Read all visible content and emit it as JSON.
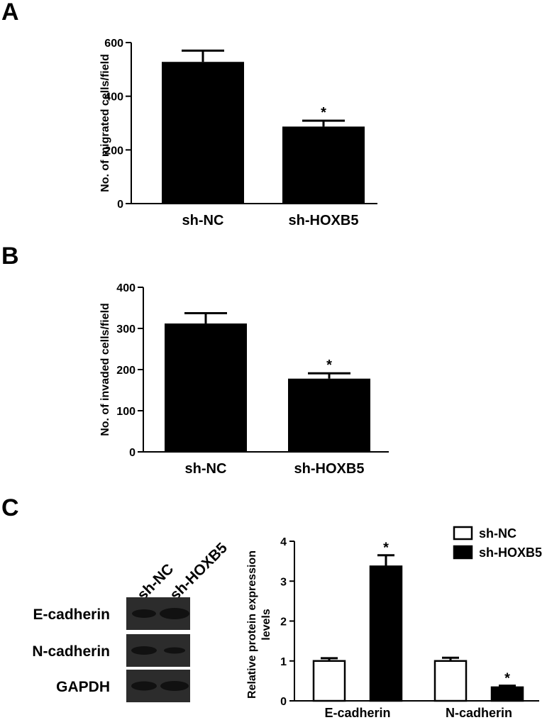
{
  "panels": {
    "a": "A",
    "b": "B",
    "c": "C"
  },
  "chart_data": [
    {
      "type": "bar",
      "panel": "A",
      "ylabel": "No. of migrated cells/field",
      "categories": [
        "sh-NC",
        "sh-HOXB5"
      ],
      "values": [
        528,
        287
      ],
      "errors": [
        42,
        22
      ],
      "annotations": [
        "",
        "*"
      ],
      "ylim": [
        0,
        600
      ],
      "yticks": [
        "0",
        "200",
        "400",
        "600"
      ],
      "bar_color": "#000000"
    },
    {
      "type": "bar",
      "panel": "B",
      "ylabel": "No. of invaded cells/field",
      "categories": [
        "sh-NC",
        "sh-HOXB5"
      ],
      "values": [
        312,
        178
      ],
      "errors": [
        25,
        13
      ],
      "annotations": [
        "",
        "*"
      ],
      "ylim": [
        0,
        400
      ],
      "yticks": [
        "0",
        "100",
        "200",
        "300",
        "400"
      ],
      "bar_color": "#000000"
    },
    {
      "type": "bar",
      "panel": "C",
      "ylabel": "Relative protein expression levels",
      "ylabel_lines": [
        "Relative protein expression",
        "levels"
      ],
      "categories": [
        "E-cadherin",
        "N-cadherin"
      ],
      "series": [
        {
          "name": "sh-NC",
          "values": [
            1.0,
            1.0
          ],
          "errors": [
            0.07,
            0.08
          ],
          "color": "#ffffff",
          "annotations": [
            "",
            ""
          ]
        },
        {
          "name": "sh-HOXB5",
          "values": [
            3.37,
            0.34
          ],
          "errors": [
            0.28,
            0.04
          ],
          "color": "#000000",
          "annotations": [
            "*",
            "*"
          ]
        }
      ],
      "ylim": [
        0,
        4
      ],
      "yticks": [
        "0",
        "1",
        "2",
        "3",
        "4"
      ],
      "legend": "top-right"
    }
  ],
  "blot": {
    "lanes": [
      "sh-NC",
      "sh-HOXB5"
    ],
    "rows": [
      "E-cadherin",
      "N-cadherin",
      "GAPDH"
    ],
    "background": "#2c2c2c",
    "band_color": "#111111"
  }
}
